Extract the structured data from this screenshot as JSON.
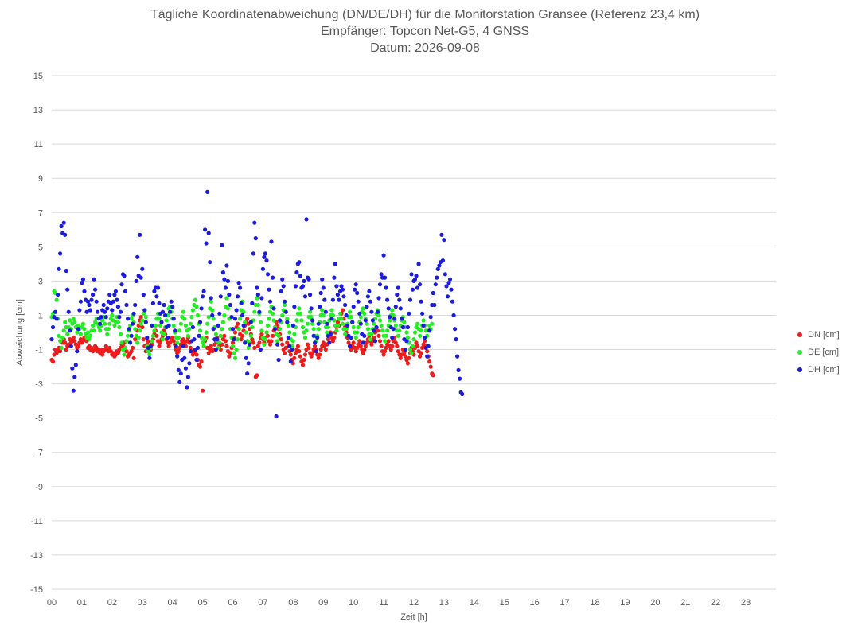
{
  "title_lines": [
    "Tägliche Koordinatenabweichung (DN/DE/DH) für die Monitorstation Gransee (Referenz 23,4 km)",
    "Empfänger: Topcon Net-G5, 4 GNSS",
    "Datum: 2026-09-08"
  ],
  "chart_data": {
    "type": "scatter",
    "title": "Tägliche Koordinatenabweichung (DN/DE/DH) für die Monitorstation Gransee (Referenz 23,4 km)",
    "subtitle": [
      "Empfänger: Topcon Net-G5, 4 GNSS",
      "Datum: 2026-09-08"
    ],
    "xlabel": "Zeit [h]",
    "ylabel": "Abweichung [cm]",
    "xlim": [
      0,
      24
    ],
    "ylim": [
      -15,
      15
    ],
    "x_ticks": [
      "00",
      "01",
      "02",
      "03",
      "04",
      "05",
      "06",
      "07",
      "08",
      "09",
      "10",
      "11",
      "12",
      "13",
      "14",
      "15",
      "16",
      "17",
      "18",
      "19",
      "20",
      "21",
      "22",
      "23"
    ],
    "y_ticks": [
      15,
      13,
      11,
      9,
      7,
      5,
      3,
      1,
      -1,
      -3,
      -5,
      -7,
      -9,
      -11,
      -13,
      -15
    ],
    "grid": "horizontal",
    "legend_position": "right",
    "sample_interval_h": 0.04,
    "series": [
      {
        "name": "DN [cm]",
        "color": "#ee1c1c",
        "values": [
          -1.6,
          -1.7,
          -1.3,
          -1.0,
          -1.2,
          -1.1,
          -0.9,
          -1.1,
          -0.9,
          -0.6,
          -0.4,
          -0.6,
          -1.0,
          -0.8,
          -0.7,
          -0.4,
          -0.6,
          -0.5,
          -0.3,
          -0.5,
          -0.7,
          -0.9,
          -0.8,
          -0.6,
          -0.4,
          -0.6,
          -0.5,
          -0.3,
          -0.4,
          -0.5,
          -0.9,
          -0.8,
          -1.0,
          -0.9,
          -1.1,
          -1.0,
          -0.8,
          -0.9,
          -1.1,
          -1.0,
          -1.2,
          -1.0,
          -1.3,
          -1.1,
          -1.0,
          -0.8,
          -1.0,
          -1.1,
          -0.9,
          -1.1,
          -1.3,
          -1.2,
          -1.4,
          -1.3,
          -1.1,
          -1.2,
          -1.0,
          -0.9,
          -0.7,
          -0.8,
          -0.6,
          -0.9,
          -1.1,
          -1.4,
          -1.3,
          -1.2,
          -1.1,
          -0.9,
          -1.5,
          -0.4,
          -0.2,
          0.1,
          0.4,
          0.7,
          0.9,
          0.3,
          -0.4,
          -0.8,
          -1.1,
          -0.7,
          -0.5,
          -0.9,
          -1.0,
          -0.7,
          -0.4,
          -0.1,
          0.1,
          -0.2,
          -0.5,
          -0.8,
          -0.6,
          -0.4,
          -0.2,
          0.1,
          -0.1,
          -0.4,
          -0.6,
          -0.8,
          -0.6,
          -0.4,
          -0.3,
          -0.5,
          -0.7,
          -1.0,
          -1.2,
          -1.1,
          -0.9,
          -0.7,
          -0.5,
          -0.4,
          -0.6,
          -0.8,
          -0.5,
          -0.3,
          -0.6,
          -0.9,
          -1.1,
          -1.3,
          -1.2,
          -1.0,
          -1.3,
          -1.6,
          -1.9,
          -2.0,
          -1.7,
          -3.4,
          -0.8,
          -0.5,
          -0.3,
          -0.9,
          -1.2,
          -1.0,
          -0.8,
          -1.1,
          -1.0,
          -0.7,
          -0.5,
          -0.3,
          -0.6,
          -0.8,
          -1.0,
          -0.7,
          -0.4,
          -0.2,
          -0.5,
          -0.8,
          -1.1,
          -1.4,
          -1.2,
          -0.9,
          -0.6,
          -0.3,
          0.0,
          0.3,
          0.5,
          0.2,
          -0.1,
          -0.4,
          -0.2,
          0.1,
          0.4,
          0.6,
          0.8,
          0.5,
          0.2,
          -0.1,
          -0.4,
          -0.6,
          -0.9,
          -2.6,
          -2.5,
          -0.8,
          -0.6,
          -0.3,
          -0.1,
          -0.4,
          -0.6,
          -0.3,
          0.0,
          -0.2,
          -0.5,
          -0.7,
          -0.5,
          -0.2,
          0.1,
          0.3,
          0.6,
          0.4,
          0.2,
          -0.1,
          -0.4,
          -0.7,
          -1.0,
          -1.2,
          -0.9,
          -0.6,
          -0.8,
          -1.1,
          -1.3,
          -1.6,
          -1.8,
          -1.5,
          -1.2,
          -1.0,
          -0.8,
          -1.1,
          -1.4,
          -1.7,
          -1.9,
          -1.6,
          -1.3,
          -1.0,
          -0.7,
          -0.9,
          -1.2,
          -1.4,
          -1.2,
          -1.0,
          -0.8,
          -1.0,
          -1.3,
          -1.5,
          -1.3,
          -1.0,
          -0.8,
          -0.6,
          -0.8,
          -1.0,
          -0.7,
          -0.4,
          -0.2,
          0.0,
          -0.3,
          -0.5,
          -0.3,
          0.0,
          0.3,
          0.6,
          0.4,
          0.8,
          1.1,
          1.3,
          0.8,
          0.3,
          0.0,
          -0.3,
          -0.6,
          -0.8,
          -1.0,
          -0.8,
          -0.6,
          -0.9,
          -1.1,
          -0.9,
          -0.7,
          -0.5,
          -0.8,
          -1.0,
          -1.2,
          -1.0,
          -0.8,
          -0.6,
          -0.4,
          -0.2,
          -0.5,
          -0.7,
          -0.5,
          -0.3,
          0.0,
          0.3,
          0.1,
          -0.2,
          -0.5,
          -0.8,
          -1.1,
          -1.3,
          -1.1,
          -0.9,
          -0.7,
          -0.5,
          -0.8,
          -1.0,
          -0.8,
          -0.5,
          -0.3,
          -0.6,
          -0.8,
          -1.1,
          -1.3,
          -1.5,
          -1.3,
          -1.0,
          -1.2,
          -1.4,
          -1.6,
          -1.8,
          -1.5,
          -1.2,
          -0.9,
          -1.1,
          -1.3,
          -0.9,
          -0.6,
          -0.8,
          -1.1,
          -1.4,
          -1.2,
          -0.9,
          -0.7,
          -0.5,
          -0.8,
          -1.1,
          -1.4,
          -1.7,
          -2.0,
          -2.4,
          -2.5
        ]
      },
      {
        "name": "DE [cm]",
        "color": "#22ee22",
        "values": [
          0.9,
          1.1,
          2.4,
          2.3,
          1.9,
          0.8,
          -0.2,
          -0.5,
          -0.9,
          -0.3,
          0.1,
          0.6,
          0.3,
          -0.1,
          0.3,
          0.7,
          0.2,
          0.5,
          0.8,
          0.6,
          0.3,
          0.0,
          0.4,
          0.2,
          -0.1,
          0.3,
          0.5,
          0.2,
          -0.1,
          -0.3,
          0.0,
          -0.4,
          -0.2,
          0.1,
          0.4,
          0.1,
          0.6,
          0.8,
          0.5,
          0.3,
          0.1,
          0.4,
          0.7,
          0.9,
          0.5,
          0.2,
          -0.1,
          0.2,
          0.5,
          0.8,
          1.0,
          0.7,
          0.4,
          0.6,
          0.9,
          0.6,
          0.3,
          -0.1,
          -0.6,
          -1.0,
          -1.3,
          -0.9,
          -0.5,
          -0.2,
          0.1,
          0.4,
          0.8,
          1.0,
          0.6,
          0.2,
          -0.2,
          -0.6,
          -0.3,
          0.1,
          0.5,
          0.7,
          1.1,
          1.3,
          0.9,
          -0.8,
          -1.1,
          -1.3,
          -0.9,
          -0.5,
          -0.2,
          0.1,
          0.4,
          0.8,
          1.1,
          0.8,
          0.4,
          0.0,
          -0.4,
          -0.1,
          0.3,
          0.7,
          1.0,
          1.4,
          1.5,
          1.2,
          0.8,
          0.4,
          0.0,
          -0.3,
          -0.6,
          -0.3,
          0.1,
          0.5,
          0.9,
          1.2,
          0.8,
          0.4,
          0.1,
          -0.2,
          0.2,
          0.5,
          0.9,
          1.3,
          1.6,
          1.9,
          1.5,
          1.0,
          0.5,
          0.1,
          -0.3,
          -0.6,
          -0.8,
          -0.4,
          0.0,
          0.5,
          0.9,
          1.4,
          1.8,
          1.3,
          0.8,
          0.3,
          -0.1,
          -0.5,
          -0.9,
          -0.6,
          -0.2,
          0.2,
          0.6,
          1.0,
          1.5,
          2.0,
          1.4,
          0.8,
          0.2,
          -0.3,
          -0.8,
          -1.2,
          -1.5,
          -1.0,
          -0.4,
          0.2,
          0.8,
          1.3,
          1.8,
          1.2,
          0.6,
          0.0,
          -0.5,
          -0.9,
          -0.6,
          -0.2,
          0.3,
          0.7,
          1.2,
          1.6,
          2.0,
          1.6,
          1.1,
          0.6,
          0.1,
          -0.3,
          -0.7,
          -0.4,
          0.0,
          0.4,
          0.8,
          1.2,
          1.5,
          1.1,
          0.7,
          0.3,
          -0.1,
          -0.5,
          -0.2,
          0.2,
          0.6,
          1.0,
          1.3,
          1.6,
          1.2,
          0.8,
          0.4,
          0.0,
          -0.4,
          -0.8,
          -0.5,
          -0.1,
          0.3,
          0.7,
          1.1,
          1.4,
          1.1,
          0.7,
          0.3,
          0.0,
          -0.3,
          0.1,
          0.5,
          0.9,
          1.2,
          0.9,
          0.5,
          0.2,
          -0.2,
          -0.5,
          -0.2,
          0.2,
          0.6,
          1.0,
          1.3,
          1.0,
          0.6,
          0.3,
          0.0,
          0.3,
          0.7,
          1.0,
          1.3,
          1.0,
          0.7,
          0.4,
          0.1,
          0.4,
          0.8,
          1.1,
          0.8,
          0.5,
          0.2,
          -0.1,
          0.2,
          0.5,
          0.9,
          1.2,
          0.9,
          0.6,
          0.3,
          0.0,
          -0.3,
          0.0,
          0.3,
          0.6,
          0.9,
          1.2,
          1.4,
          1.1,
          0.8,
          0.5,
          0.2,
          -0.1,
          -0.4,
          -0.1,
          0.2,
          0.5,
          0.8,
          1.1,
          1.3,
          1.0,
          0.7,
          0.4,
          0.1,
          -0.2,
          -0.5,
          -0.2,
          0.1,
          0.4,
          0.7,
          1.0,
          1.3,
          1.0,
          0.7,
          0.4,
          0.1,
          -0.2,
          0.1,
          0.4,
          0.7,
          0.9,
          0.6,
          0.3,
          0.0,
          -0.3,
          -0.6,
          -1.0,
          -1.2,
          -0.8,
          -0.4,
          0.0,
          0.3,
          0.5,
          0.2,
          -0.2,
          0.1,
          0.4,
          0.7,
          0.4,
          0.1,
          -0.2,
          0.1,
          0.4,
          0.2,
          0.5
        ]
      },
      {
        "name": "DH [cm]",
        "color": "#1c1cdd",
        "values": [
          -0.4,
          0.3,
          0.9,
          1.2,
          0.8,
          2.2,
          3.7,
          4.6,
          6.2,
          5.8,
          6.4,
          5.7,
          3.6,
          2.5,
          1.2,
          0.1,
          -0.8,
          -2.1,
          -3.4,
          -2.6,
          -1.9,
          -1.1,
          0.2,
          1.3,
          1.8,
          2.9,
          3.1,
          2.4,
          1.9,
          1.2,
          1.8,
          1.6,
          1.3,
          1.9,
          2.2,
          3.1,
          2.5,
          1.8,
          1.2,
          0.8,
          0.5,
          0.9,
          1.3,
          1.6,
          1.2,
          0.9,
          1.4,
          1.8,
          2.2,
          1.7,
          1.3,
          1.8,
          2.2,
          2.4,
          1.9,
          1.5,
          0.9,
          1.2,
          2.8,
          3.4,
          3.3,
          2.4,
          1.6,
          0.8,
          0.2,
          -0.6,
          -0.2,
          0.5,
          1.1,
          1.6,
          3.0,
          4.4,
          3.3,
          5.7,
          3.2,
          3.7,
          2.2,
          1.3,
          0.6,
          -0.3,
          -0.9,
          -1.5,
          -0.8,
          0.4,
          1.7,
          2.4,
          2.6,
          2.1,
          2.6,
          1.7,
          1.1,
          0.6,
          1.2,
          1.6,
          1.0,
          0.3,
          -0.3,
          0.4,
          1.2,
          1.8,
          1.5,
          0.8,
          0.1,
          -0.8,
          -1.4,
          -2.2,
          -2.9,
          -2.4,
          -1.6,
          -0.8,
          -1.5,
          -2.1,
          -3.2,
          -2.6,
          -1.8,
          -1.1,
          -0.5,
          0.3,
          -0.4,
          -1.0,
          -1.6,
          -0.9,
          -0.2,
          0.6,
          1.4,
          2.1,
          2.4,
          6.0,
          5.2,
          8.2,
          5.8,
          4.1,
          2.0,
          1.0,
          0.2,
          -0.4,
          -1.0,
          -0.4,
          0.4,
          1.1,
          2.1,
          5.1,
          3.5,
          3.1,
          2.6,
          3.9,
          3.0,
          2.2,
          1.6,
          0.9,
          0.2,
          -0.4,
          0.8,
          1.3,
          2.1,
          2.9,
          2.6,
          1.7,
          1.0,
          0.4,
          -0.6,
          -1.5,
          -2.4,
          -1.8,
          -0.7,
          0.6,
          1.7,
          4.6,
          6.4,
          5.5,
          2.6,
          2.2,
          1.2,
          -1.0,
          2.0,
          3.7,
          4.4,
          4.6,
          4.2,
          3.4,
          2.5,
          1.8,
          5.3,
          3.2,
          1.4,
          0.2,
          -4.9,
          -0.7,
          -1.6,
          0.7,
          2.4,
          3.1,
          2.7,
          1.8,
          1.2,
          0.6,
          -0.3,
          -0.8,
          -1.7,
          -1.0,
          0.4,
          1.5,
          2.7,
          3.5,
          4.0,
          4.1,
          3.3,
          2.6,
          2.7,
          3.0,
          2.1,
          6.6,
          3.2,
          3.1,
          2.2,
          1.4,
          0.7,
          -0.2,
          -0.6,
          -1.1,
          -0.3,
          0.5,
          1.5,
          2.3,
          3.1,
          2.6,
          1.9,
          1.2,
          0.5,
          -0.2,
          -0.6,
          -0.1,
          0.8,
          1.9,
          3.2,
          4.0,
          2.7,
          2.2,
          1.9,
          2.4,
          2.7,
          2.5,
          2.1,
          1.6,
          1.0,
          0.4,
          -0.2,
          -0.8,
          -0.3,
          0.6,
          1.5,
          2.5,
          2.8,
          2.3,
          1.8,
          1.1,
          0.5,
          -0.1,
          -0.6,
          -0.2,
          0.7,
          1.5,
          2.1,
          2.4,
          1.8,
          1.2,
          0.7,
          0.1,
          -0.5,
          0.3,
          1.2,
          2.0,
          2.8,
          3.4,
          3.2,
          4.5,
          3.2,
          2.6,
          1.9,
          1.4,
          0.9,
          0.3,
          -0.3,
          0.2,
          0.8,
          1.5,
          2.2,
          2.6,
          1.9,
          1.4,
          0.8,
          0.3,
          -0.4,
          -1.0,
          -0.5,
          0.3,
          1.1,
          1.9,
          3.4,
          2.5,
          3.0,
          3.1,
          3.3,
          2.6,
          4.0,
          2.8,
          1.8,
          1.1,
          0.4,
          -0.3,
          -0.9,
          -1.4,
          -0.8,
          0.1,
          0.9,
          1.6,
          2.3,
          1.6,
          2.8,
          3.2,
          3.7,
          3.9,
          4.1,
          5.7,
          4.2,
          5.4,
          3.4,
          2.7,
          2.1,
          2.9,
          3.1,
          2.5,
          1.8,
          1.0,
          0.2,
          -0.4,
          -1.4,
          -2.2,
          -2.7,
          -3.5,
          -3.6
        ]
      }
    ]
  }
}
